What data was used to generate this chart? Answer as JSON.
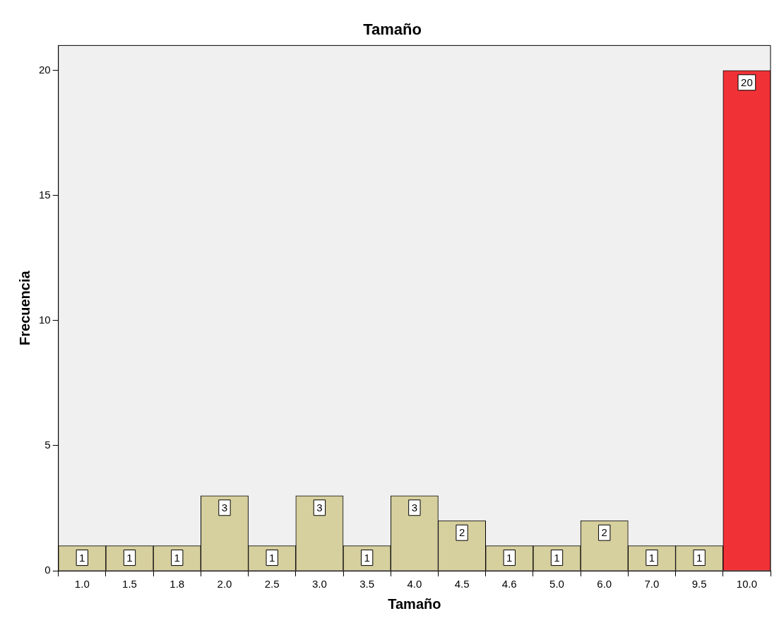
{
  "chart_data": {
    "type": "bar",
    "title": "Tamaño",
    "xlabel": "Tamaño",
    "ylabel": "Frecuencia",
    "categories": [
      "1.0",
      "1.5",
      "1.8",
      "2.0",
      "2.5",
      "3.0",
      "3.5",
      "4.0",
      "4.5",
      "4.6",
      "5.0",
      "6.0",
      "7.0",
      "9.5",
      "10.0"
    ],
    "values": [
      1,
      1,
      1,
      3,
      1,
      3,
      1,
      3,
      2,
      1,
      1,
      2,
      1,
      1,
      20
    ],
    "colors": [
      "#d6cf9e",
      "#d6cf9e",
      "#d6cf9e",
      "#d6cf9e",
      "#d6cf9e",
      "#d6cf9e",
      "#d6cf9e",
      "#d6cf9e",
      "#d6cf9e",
      "#d6cf9e",
      "#d6cf9e",
      "#d6cf9e",
      "#d6cf9e",
      "#d6cf9e",
      "#f03237"
    ],
    "ylim": [
      0,
      21
    ],
    "yticks": [
      0,
      5,
      10,
      15,
      20
    ],
    "grid": false,
    "legend": false,
    "data_labels": true
  }
}
